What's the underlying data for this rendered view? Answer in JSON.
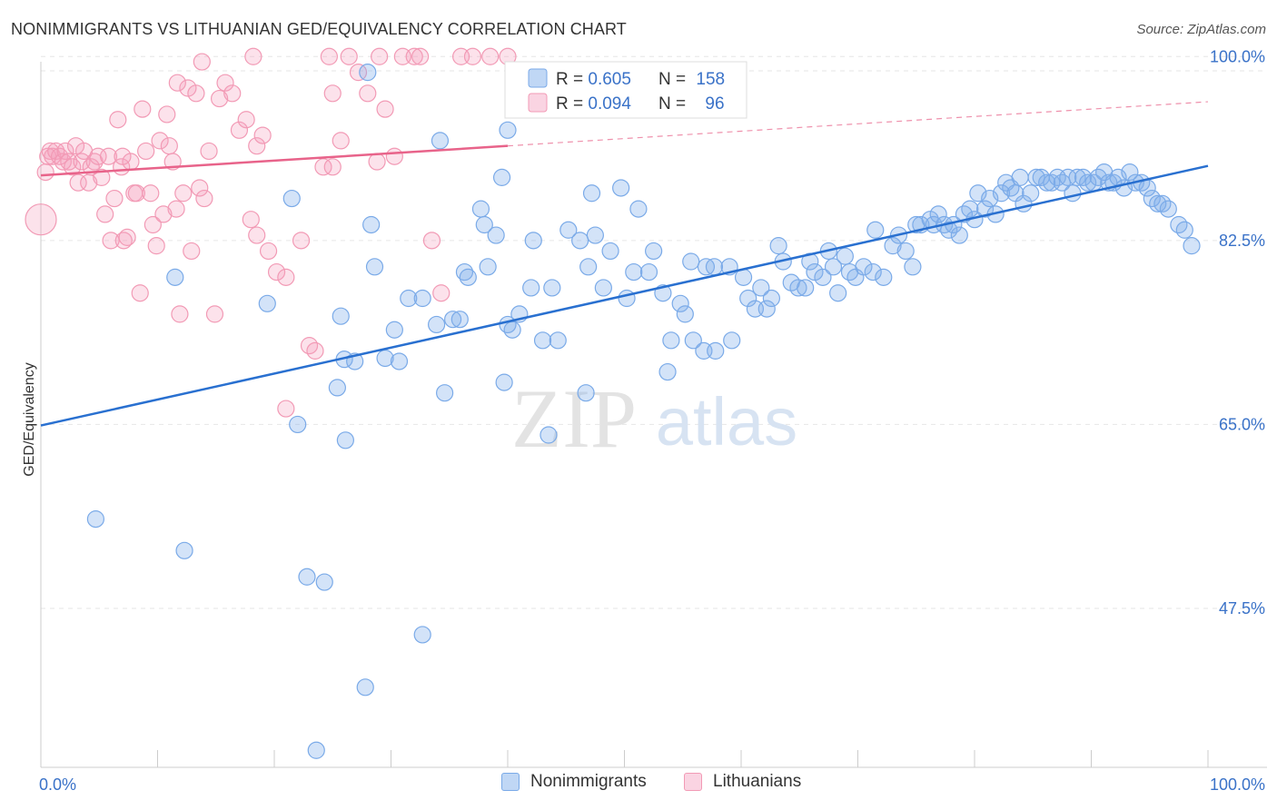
{
  "title": "NONIMMIGRANTS VS LITHUANIAN GED/EQUIVALENCY CORRELATION CHART",
  "source": "Source: ZipAtlas.com",
  "watermark": {
    "zip": "ZIP",
    "atlas": "atlas"
  },
  "colors": {
    "blue": "#7aaae8",
    "blue_fill": "rgba(130,175,235,0.35)",
    "blue_line": "#2970d0",
    "pink": "#f29ab5",
    "pink_fill": "rgba(245,160,190,0.30)",
    "pink_line": "#e8638a",
    "tick_label": "#3a72c8"
  },
  "legend_stats": [
    {
      "r_label": "R = ",
      "r_value": "0.605",
      "n_label": "N = ",
      "n_value": "158"
    },
    {
      "r_label": "R = ",
      "r_value": "0.094",
      "n_label": "N = ",
      "n_value": "96"
    }
  ],
  "chart_data": {
    "type": "scatter",
    "title": "NONIMMIGRANTS VS LITHUANIAN GED/EQUIVALENCY CORRELATION CHART",
    "xlabel": "",
    "ylabel": "GED/Equivalency",
    "xlim": [
      0,
      100
    ],
    "ylim": [
      33,
      103
    ],
    "x_tick_labels": [
      "0.0%",
      "100.0%"
    ],
    "y_ticks": [
      47.5,
      65.0,
      82.5,
      100.0
    ],
    "y_tick_labels": [
      "47.5%",
      "65.0%",
      "82.5%",
      "100.0%"
    ],
    "grid": true,
    "legend_position": "top-center",
    "series": [
      {
        "name": "Nonimmigrants",
        "color": "blue",
        "trend": {
          "x0": 0,
          "y0": 64.9,
          "x1": 100,
          "y1": 89.6
        },
        "points": [
          [
            4.7,
            56.0
          ],
          [
            12.3,
            53.0
          ],
          [
            22.8,
            50.5
          ],
          [
            24.3,
            50.0
          ],
          [
            32.7,
            45.0
          ],
          [
            27.8,
            40.0
          ],
          [
            23.6,
            34.0
          ],
          [
            11.5,
            79.0
          ],
          [
            19.4,
            76.5
          ],
          [
            21.5,
            86.5
          ],
          [
            22.0,
            65.0
          ],
          [
            25.4,
            68.5
          ],
          [
            26.1,
            63.5
          ],
          [
            25.7,
            75.3
          ],
          [
            26.0,
            71.2
          ],
          [
            26.9,
            71.0
          ],
          [
            28.3,
            84.0
          ],
          [
            28.6,
            80.0
          ],
          [
            29.5,
            71.3
          ],
          [
            30.3,
            74.0
          ],
          [
            30.7,
            71.0
          ],
          [
            31.5,
            77.0
          ],
          [
            32.7,
            77.0
          ],
          [
            33.9,
            74.5
          ],
          [
            34.2,
            92.0
          ],
          [
            34.6,
            68.0
          ],
          [
            35.3,
            75.0
          ],
          [
            35.9,
            75.0
          ],
          [
            36.3,
            79.5
          ],
          [
            36.6,
            79.0
          ],
          [
            37.7,
            85.5
          ],
          [
            38.0,
            84.0
          ],
          [
            38.3,
            80.0
          ],
          [
            39.0,
            83.0
          ],
          [
            39.5,
            88.5
          ],
          [
            39.7,
            69.0
          ],
          [
            40.0,
            74.5
          ],
          [
            40.4,
            74.0
          ],
          [
            41.0,
            75.5
          ],
          [
            42.0,
            78.0
          ],
          [
            42.2,
            82.5
          ],
          [
            43.0,
            73.0
          ],
          [
            43.5,
            64.0
          ],
          [
            43.8,
            78.0
          ],
          [
            44.3,
            73.0
          ],
          [
            45.2,
            83.5
          ],
          [
            46.2,
            82.5
          ],
          [
            46.7,
            68.0
          ],
          [
            46.9,
            80.0
          ],
          [
            47.2,
            87.0
          ],
          [
            47.5,
            83.0
          ],
          [
            48.2,
            78.0
          ],
          [
            48.8,
            81.5
          ],
          [
            49.7,
            87.5
          ],
          [
            50.2,
            77.0
          ],
          [
            50.8,
            79.5
          ],
          [
            51.2,
            85.5
          ],
          [
            52.1,
            79.5
          ],
          [
            52.5,
            81.5
          ],
          [
            53.3,
            77.5
          ],
          [
            53.7,
            70.0
          ],
          [
            54.0,
            73.0
          ],
          [
            54.8,
            76.5
          ],
          [
            55.2,
            75.5
          ],
          [
            55.7,
            80.5
          ],
          [
            55.9,
            73.0
          ],
          [
            56.8,
            72.0
          ],
          [
            57.0,
            80.0
          ],
          [
            57.7,
            80.0
          ],
          [
            57.8,
            72.0
          ],
          [
            59.0,
            80.0
          ],
          [
            59.2,
            73.0
          ],
          [
            60.2,
            79.0
          ],
          [
            60.6,
            77.0
          ],
          [
            61.2,
            76.0
          ],
          [
            61.7,
            78.0
          ],
          [
            62.2,
            76.0
          ],
          [
            62.6,
            77.0
          ],
          [
            63.2,
            82.0
          ],
          [
            63.6,
            80.5
          ],
          [
            64.3,
            78.5
          ],
          [
            64.9,
            78.0
          ],
          [
            65.5,
            78.0
          ],
          [
            65.9,
            80.5
          ],
          [
            66.3,
            79.5
          ],
          [
            67.0,
            79.0
          ],
          [
            67.5,
            81.5
          ],
          [
            67.9,
            80.0
          ],
          [
            68.3,
            77.5
          ],
          [
            68.9,
            81.0
          ],
          [
            69.3,
            79.5
          ],
          [
            69.8,
            79.0
          ],
          [
            70.5,
            80.0
          ],
          [
            71.3,
            79.5
          ],
          [
            71.5,
            83.5
          ],
          [
            72.2,
            79.0
          ],
          [
            73.0,
            82.0
          ],
          [
            73.5,
            83.0
          ],
          [
            74.1,
            81.5
          ],
          [
            74.7,
            80.0
          ],
          [
            75.0,
            84.0
          ],
          [
            75.4,
            84.0
          ],
          [
            76.2,
            84.5
          ],
          [
            76.5,
            84.0
          ],
          [
            76.9,
            85.0
          ],
          [
            77.4,
            84.0
          ],
          [
            77.8,
            83.5
          ],
          [
            78.2,
            84.0
          ],
          [
            78.7,
            83.0
          ],
          [
            79.1,
            85.0
          ],
          [
            79.6,
            85.5
          ],
          [
            80.0,
            84.5
          ],
          [
            80.3,
            87.0
          ],
          [
            80.9,
            85.5
          ],
          [
            81.3,
            86.5
          ],
          [
            81.8,
            85.0
          ],
          [
            82.3,
            87.0
          ],
          [
            82.7,
            88.0
          ],
          [
            83.1,
            87.5
          ],
          [
            83.5,
            87.0
          ],
          [
            83.9,
            88.5
          ],
          [
            84.2,
            86.0
          ],
          [
            84.8,
            87.0
          ],
          [
            85.3,
            88.5
          ],
          [
            85.7,
            88.5
          ],
          [
            86.2,
            88.0
          ],
          [
            86.6,
            88.0
          ],
          [
            87.1,
            88.5
          ],
          [
            87.5,
            88.0
          ],
          [
            88.0,
            88.5
          ],
          [
            88.4,
            87.0
          ],
          [
            88.8,
            88.5
          ],
          [
            89.3,
            88.5
          ],
          [
            89.7,
            88.0
          ],
          [
            90.2,
            88.0
          ],
          [
            90.6,
            88.5
          ],
          [
            91.1,
            89.0
          ],
          [
            91.5,
            88.0
          ],
          [
            91.9,
            88.0
          ],
          [
            92.3,
            88.5
          ],
          [
            92.8,
            87.5
          ],
          [
            93.3,
            89.0
          ],
          [
            93.8,
            88.0
          ],
          [
            94.3,
            88.0
          ],
          [
            94.8,
            87.5
          ],
          [
            95.2,
            86.5
          ],
          [
            95.7,
            86.0
          ],
          [
            96.1,
            86.0
          ],
          [
            96.6,
            85.5
          ],
          [
            97.5,
            84.0
          ],
          [
            98.0,
            83.5
          ],
          [
            98.6,
            82.0
          ],
          [
            28.0,
            98.5
          ],
          [
            40.0,
            93.0
          ]
        ]
      },
      {
        "name": "Lithuanians",
        "color": "pink",
        "trend": {
          "x0": 0,
          "y0": 88.7,
          "x1": 40,
          "y1": 91.5,
          "dash_to_x": 100,
          "dash_to_y": 95.7
        },
        "points": [
          [
            0.0,
            84.5
          ],
          [
            0.4,
            89.0
          ],
          [
            0.6,
            90.5
          ],
          [
            0.8,
            91.0
          ],
          [
            1.0,
            90.5
          ],
          [
            1.3,
            91.0
          ],
          [
            1.6,
            90.5
          ],
          [
            1.9,
            90.0
          ],
          [
            2.1,
            91.0
          ],
          [
            2.4,
            90.0
          ],
          [
            2.7,
            89.5
          ],
          [
            3.0,
            91.5
          ],
          [
            3.2,
            88.0
          ],
          [
            3.5,
            90.0
          ],
          [
            3.7,
            91.0
          ],
          [
            4.1,
            88.0
          ],
          [
            4.3,
            89.5
          ],
          [
            4.6,
            90.0
          ],
          [
            4.9,
            90.5
          ],
          [
            5.2,
            88.5
          ],
          [
            5.5,
            85.0
          ],
          [
            5.8,
            90.5
          ],
          [
            6.0,
            82.5
          ],
          [
            6.3,
            86.5
          ],
          [
            6.6,
            94.0
          ],
          [
            6.9,
            89.5
          ],
          [
            7.1,
            82.5
          ],
          [
            7.4,
            82.8
          ],
          [
            7.7,
            90.0
          ],
          [
            8.0,
            87.0
          ],
          [
            8.2,
            87.0
          ],
          [
            8.5,
            77.5
          ],
          [
            8.7,
            95.0
          ],
          [
            9.0,
            91.0
          ],
          [
            9.4,
            87.0
          ],
          [
            9.6,
            84.0
          ],
          [
            9.9,
            82.0
          ],
          [
            10.2,
            92.0
          ],
          [
            10.5,
            85.0
          ],
          [
            10.8,
            94.5
          ],
          [
            11.0,
            91.5
          ],
          [
            11.3,
            90.0
          ],
          [
            11.6,
            85.5
          ],
          [
            11.9,
            75.5
          ],
          [
            12.2,
            87.0
          ],
          [
            12.6,
            97.0
          ],
          [
            12.9,
            81.5
          ],
          [
            13.3,
            96.5
          ],
          [
            13.6,
            87.5
          ],
          [
            14.0,
            86.5
          ],
          [
            14.4,
            91.0
          ],
          [
            14.9,
            75.5
          ],
          [
            15.3,
            96.0
          ],
          [
            15.8,
            97.5
          ],
          [
            16.4,
            96.5
          ],
          [
            17.0,
            93.0
          ],
          [
            17.6,
            94.0
          ],
          [
            18.0,
            84.5
          ],
          [
            18.5,
            91.5
          ],
          [
            19.0,
            92.5
          ],
          [
            19.5,
            81.5
          ],
          [
            20.2,
            79.5
          ],
          [
            21.0,
            66.5
          ],
          [
            22.3,
            82.5
          ],
          [
            23.0,
            72.5
          ],
          [
            23.5,
            72.0
          ],
          [
            24.2,
            89.5
          ],
          [
            25.0,
            89.5
          ],
          [
            25.7,
            92.0
          ],
          [
            26.4,
            100.0
          ],
          [
            27.2,
            98.5
          ],
          [
            28.0,
            96.5
          ],
          [
            28.8,
            90.0
          ],
          [
            29.5,
            95.0
          ],
          [
            30.3,
            90.5
          ],
          [
            31.0,
            100.0
          ],
          [
            32.0,
            100.0
          ],
          [
            32.5,
            100.0
          ],
          [
            33.5,
            82.5
          ],
          [
            34.3,
            77.5
          ],
          [
            36.0,
            100.0
          ],
          [
            37.0,
            100.0
          ],
          [
            38.5,
            100.0
          ],
          [
            40.0,
            100.0
          ],
          [
            7.0,
            90.5
          ],
          [
            11.7,
            97.5
          ],
          [
            13.8,
            99.5
          ],
          [
            18.5,
            83.0
          ],
          [
            21.0,
            79.0
          ],
          [
            24.7,
            100.0
          ],
          [
            18.2,
            100.0
          ],
          [
            25.0,
            96.5
          ],
          [
            29.0,
            100.0
          ]
        ]
      }
    ]
  }
}
